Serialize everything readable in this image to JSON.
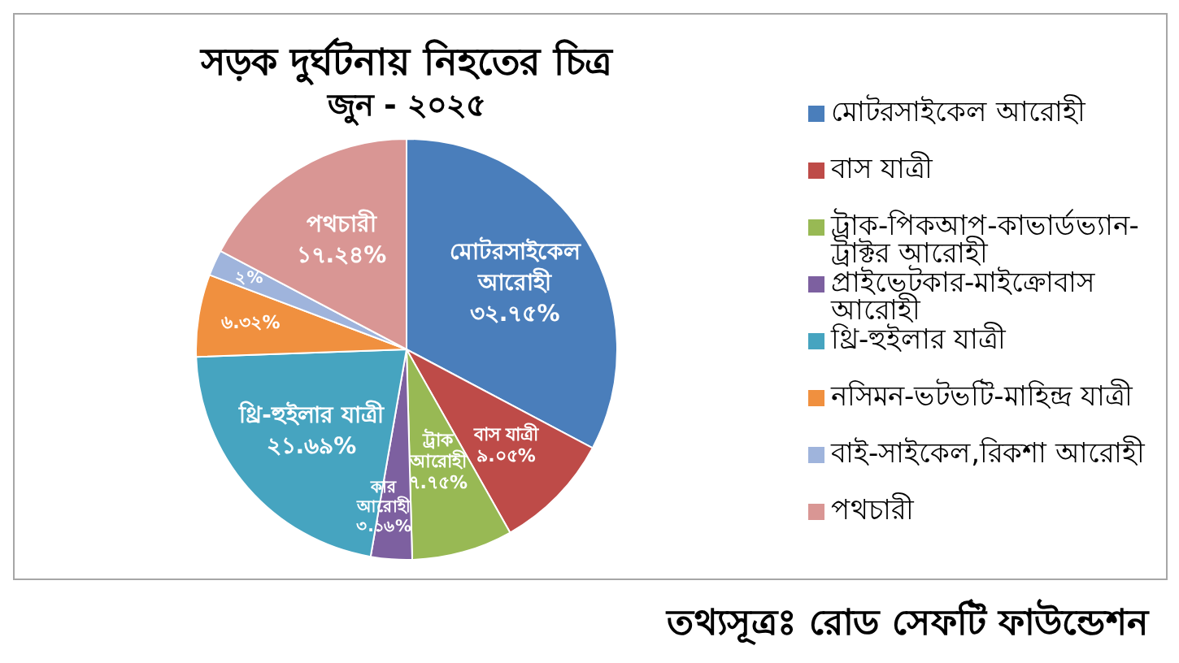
{
  "chart_data": {
    "type": "pie",
    "title": "সড়ক দুর্ঘটনায় নিহতের চিত্র",
    "subtitle": "জুন - ২০২৫",
    "categories": [
      "মোটরসাইকেল আরোহী",
      "বাস যাত্রী",
      "ট্রাক-পিকআপ-কাভার্ডভ্যান-ট্রাক্টর আরোহী",
      "প্রাইভেটকার-মাইক্রোবাস আরোহী",
      "থ্রি-হুইলার যাত্রী",
      "নসিমন-ভটভটি-মাহিন্দ্র যাত্রী",
      "বাই-সাইকেল,রিকশা আরোহী",
      "পথচারী"
    ],
    "values": [
      32.75,
      9.05,
      7.75,
      3.16,
      21.69,
      6.32,
      2,
      17.24
    ],
    "colors": [
      "#4a7ebb",
      "#be4b48",
      "#98b954",
      "#7d60a0",
      "#46a4c0",
      "#f0903f",
      "#9fb4dc",
      "#d99694"
    ],
    "value_labels": [
      "মোটরসাইকেল আরোহী ৩২.৭৫%",
      "বাস যাত্রী ৯.০৫%",
      "ট্রাক আরোহী ৭.৭৫%",
      "কার আরোহী ৩.১৬%",
      "থ্রি-হুইলার যাত্রী ২১.৬৯%",
      "৬.৩২%",
      "২%",
      "পথচারী ১৭.২৪%"
    ],
    "legend": "right",
    "annotations": [
      "তথ্যসূত্রঃ রোড সেফটি ফাউন্ডেশন"
    ]
  }
}
